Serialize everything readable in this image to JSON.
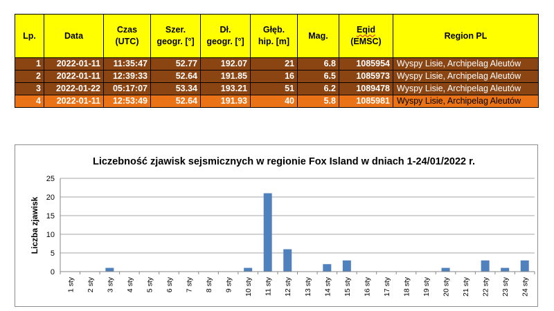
{
  "table": {
    "headers": [
      [
        "Lp.",
        ""
      ],
      [
        "Data",
        ""
      ],
      [
        "Czas",
        "(UTC)"
      ],
      [
        "Szer.",
        "geogr. [°]"
      ],
      [
        "Dł.",
        "geogr. [°]"
      ],
      [
        "Głęb.",
        "hip. [m]"
      ],
      [
        "Mag.",
        ""
      ],
      [
        "Eqid",
        "(EMSC)"
      ],
      [
        "Region PL",
        ""
      ]
    ],
    "rows": [
      [
        "1",
        "2022-01-11",
        "11:35:47",
        "52.77",
        "192.07",
        "21",
        "6.8",
        "1085954",
        "Wyspy Lisie, Archipelag Aleutów"
      ],
      [
        "2",
        "2022-01-11",
        "12:39:33",
        "52.64",
        "191.85",
        "16",
        "6.5",
        "1085973",
        "Wyspy Lisie, Archipelag Aleutów"
      ],
      [
        "3",
        "2022-01-22",
        "05:17:07",
        "53.34",
        "193.21",
        "51",
        "6.2",
        "1089478",
        "Wyspy Lisie, Archipelag Aleutów"
      ],
      [
        "4",
        "2022-01-11",
        "12:53:49",
        "52.64",
        "191.93",
        "40",
        "5.8",
        "1085981",
        "Wyspy Lisie, Archipelag Aleutów"
      ]
    ],
    "colors": {
      "header_bg": "#ffff00",
      "row_dark": "#8b4513",
      "row_light": "#e97316"
    }
  },
  "chart_data": {
    "type": "bar",
    "title": "Liczebność zjawisk sejsmicznych w regionie Fox Island w dniach 1-24/01/2022 r.",
    "xlabel": "",
    "ylabel": "Liczba zjawisk",
    "ylim": [
      0,
      25
    ],
    "yticks": [
      0,
      5,
      10,
      15,
      20,
      25
    ],
    "grid": true,
    "bar_color": "#4f81bd",
    "categories": [
      "1 sty",
      "2 sty",
      "3 sty",
      "4 sty",
      "5 sty",
      "6 sty",
      "7 sty",
      "8 sty",
      "9 sty",
      "10 sty",
      "11 sty",
      "12 sty",
      "13 sty",
      "14 sty",
      "15 sty",
      "16 sty",
      "17 sty",
      "18 sty",
      "19 sty",
      "20 sty",
      "21 sty",
      "22 sty",
      "23 sty",
      "24 sty"
    ],
    "values": [
      0,
      0,
      1,
      0,
      0,
      0,
      0,
      0,
      0,
      1,
      21,
      6,
      0,
      2,
      3,
      0,
      0,
      0,
      0,
      1,
      0,
      3,
      1,
      3
    ]
  }
}
